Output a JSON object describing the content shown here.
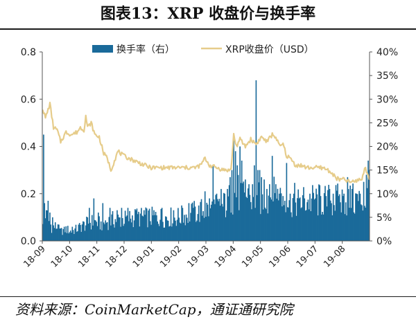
{
  "header": {
    "title": "图表13：XRP 收盘价与换手率"
  },
  "footer": {
    "source": "资料来源：CoinMarketCap，通证通研究院"
  },
  "colors": {
    "bar": "#1a6a9a",
    "line": "#e6cc8a",
    "axis": "#555555",
    "text": "#222222",
    "rule": "#1a1a1a"
  },
  "chart_data": {
    "type": "bar+line",
    "title": "图表13：XRP 收盘价与换手率",
    "legend": [
      "换手率（右）",
      "XRP收盘价（USD）"
    ],
    "legend_position": "top-center",
    "grid": false,
    "x_tick_labels": [
      "18-09",
      "18-10",
      "18-11",
      "18-12",
      "19-01",
      "19-02",
      "19-03",
      "19-04",
      "19-05",
      "19-06",
      "19-07",
      "19-08"
    ],
    "y_left": {
      "label": "XRP收盘价（USD）",
      "ticks": [
        "0.0",
        "0.2",
        "0.4",
        "0.6",
        "0.8"
      ],
      "range": [
        0,
        0.8
      ]
    },
    "y_right": {
      "label": "换手率",
      "ticks": [
        "0%",
        "5%",
        "10%",
        "15%",
        "20%",
        "25%",
        "30%",
        "35%",
        "40%"
      ],
      "range": [
        0,
        40
      ]
    },
    "n_days": 365,
    "series": [
      {
        "name": "XRP收盘价（USD）",
        "axis": "left",
        "kind": "line",
        "points": [
          [
            0,
            0.56
          ],
          [
            3,
            0.52
          ],
          [
            8,
            0.58
          ],
          [
            12,
            0.48
          ],
          [
            16,
            0.47
          ],
          [
            20,
            0.42
          ],
          [
            26,
            0.46
          ],
          [
            32,
            0.45
          ],
          [
            38,
            0.46
          ],
          [
            42,
            0.48
          ],
          [
            46,
            0.47
          ],
          [
            48,
            0.53
          ],
          [
            50,
            0.48
          ],
          [
            54,
            0.5
          ],
          [
            58,
            0.45
          ],
          [
            63,
            0.44
          ],
          [
            68,
            0.37
          ],
          [
            72,
            0.35
          ],
          [
            76,
            0.3
          ],
          [
            80,
            0.34
          ],
          [
            84,
            0.38
          ],
          [
            90,
            0.36
          ],
          [
            96,
            0.35
          ],
          [
            102,
            0.34
          ],
          [
            108,
            0.33
          ],
          [
            114,
            0.32
          ],
          [
            120,
            0.31
          ],
          [
            130,
            0.31
          ],
          [
            140,
            0.31
          ],
          [
            150,
            0.31
          ],
          [
            160,
            0.31
          ],
          [
            170,
            0.31
          ],
          [
            176,
            0.32
          ],
          [
            181,
            0.35
          ],
          [
            186,
            0.32
          ],
          [
            194,
            0.31
          ],
          [
            202,
            0.3
          ],
          [
            210,
            0.3
          ],
          [
            213,
            0.45
          ],
          [
            216,
            0.4
          ],
          [
            220,
            0.43
          ],
          [
            226,
            0.4
          ],
          [
            232,
            0.43
          ],
          [
            238,
            0.41
          ],
          [
            244,
            0.44
          ],
          [
            250,
            0.42
          ],
          [
            256,
            0.45
          ],
          [
            260,
            0.44
          ],
          [
            264,
            0.4
          ],
          [
            268,
            0.41
          ],
          [
            272,
            0.36
          ],
          [
            276,
            0.35
          ],
          [
            282,
            0.32
          ],
          [
            288,
            0.32
          ],
          [
            294,
            0.31
          ],
          [
            300,
            0.31
          ],
          [
            306,
            0.31
          ],
          [
            312,
            0.31
          ],
          [
            318,
            0.3
          ],
          [
            322,
            0.29
          ],
          [
            326,
            0.27
          ],
          [
            330,
            0.26
          ],
          [
            336,
            0.26
          ],
          [
            342,
            0.25
          ],
          [
            348,
            0.25
          ],
          [
            352,
            0.26
          ],
          [
            356,
            0.26
          ],
          [
            359,
            0.31
          ],
          [
            364,
            0.27
          ]
        ]
      },
      {
        "name": "换手率（右）",
        "axis": "right",
        "kind": "bar",
        "base_points": [
          [
            0,
            5
          ],
          [
            5,
            5
          ],
          [
            10,
            3
          ],
          [
            15,
            3
          ],
          [
            20,
            2
          ],
          [
            26,
            2.5
          ],
          [
            32,
            2
          ],
          [
            38,
            2.5
          ],
          [
            42,
            3
          ],
          [
            48,
            3.5
          ],
          [
            55,
            4
          ],
          [
            60,
            4
          ],
          [
            65,
            3.5
          ],
          [
            70,
            4
          ],
          [
            80,
            4.5
          ],
          [
            90,
            4.5
          ],
          [
            100,
            5
          ],
          [
            110,
            5
          ],
          [
            120,
            5
          ],
          [
            130,
            5
          ],
          [
            140,
            5
          ],
          [
            150,
            5
          ],
          [
            160,
            5.5
          ],
          [
            170,
            6
          ],
          [
            180,
            6.5
          ],
          [
            190,
            7
          ],
          [
            200,
            7
          ],
          [
            205,
            8
          ],
          [
            210,
            9
          ],
          [
            215,
            10
          ],
          [
            220,
            10
          ],
          [
            230,
            9
          ],
          [
            240,
            9
          ],
          [
            250,
            9.5
          ],
          [
            260,
            9.5
          ],
          [
            270,
            9
          ],
          [
            280,
            8.5
          ],
          [
            290,
            8.5
          ],
          [
            300,
            8.5
          ],
          [
            310,
            8.5
          ],
          [
            320,
            8.5
          ],
          [
            330,
            8.5
          ],
          [
            340,
            8.5
          ],
          [
            350,
            8.5
          ],
          [
            364,
            9
          ]
        ],
        "spikes": [
          [
            1,
            22.5
          ],
          [
            2,
            8
          ],
          [
            4,
            6.5
          ],
          [
            6,
            8.5
          ],
          [
            8,
            6
          ],
          [
            11,
            5
          ],
          [
            17,
            3.5
          ],
          [
            24,
            3
          ],
          [
            33,
            3
          ],
          [
            44,
            3.5
          ],
          [
            52,
            7
          ],
          [
            57,
            9
          ],
          [
            62,
            6
          ],
          [
            67,
            8
          ],
          [
            75,
            7
          ],
          [
            83,
            6.5
          ],
          [
            88,
            7
          ],
          [
            95,
            7
          ],
          [
            104,
            6.5
          ],
          [
            113,
            6.5
          ],
          [
            124,
            6.5
          ],
          [
            133,
            7
          ],
          [
            146,
            6.5
          ],
          [
            156,
            7
          ],
          [
            163,
            8
          ],
          [
            168,
            7
          ],
          [
            174,
            7.5
          ],
          [
            181,
            10.5
          ],
          [
            186,
            9
          ],
          [
            190,
            16
          ],
          [
            194,
            10
          ],
          [
            199,
            11
          ],
          [
            203,
            10
          ],
          [
            206,
            11
          ],
          [
            209,
            13.5
          ],
          [
            211,
            15
          ],
          [
            213,
            22.5
          ],
          [
            215,
            19
          ],
          [
            217,
            16
          ],
          [
            220,
            20
          ],
          [
            222,
            17
          ],
          [
            226,
            13
          ],
          [
            230,
            12
          ],
          [
            234,
            12
          ],
          [
            236,
            16
          ],
          [
            238,
            12
          ],
          [
            240,
            15
          ],
          [
            242,
            15
          ],
          [
            244,
            13.5
          ],
          [
            247,
            13
          ],
          [
            250,
            11
          ],
          [
            253,
            12
          ],
          [
            256,
            18
          ],
          [
            260,
            12
          ],
          [
            264,
            10
          ],
          [
            268,
            9.5
          ],
          [
            272,
            16.5
          ],
          [
            276,
            10
          ],
          [
            280,
            10
          ],
          [
            286,
            9
          ],
          [
            292,
            9
          ],
          [
            298,
            10
          ],
          [
            304,
            9
          ],
          [
            310,
            9.5
          ],
          [
            316,
            9.5
          ],
          [
            320,
            11
          ],
          [
            324,
            10
          ],
          [
            330,
            9.5
          ],
          [
            336,
            10
          ],
          [
            340,
            13.5
          ],
          [
            345,
            11
          ],
          [
            350,
            10
          ],
          [
            354,
            10
          ],
          [
            358,
            12.5
          ],
          [
            361,
            14
          ],
          [
            363,
            17
          ],
          [
            364,
            15
          ]
        ],
        "peak": [
          238,
          34
        ]
      }
    ]
  }
}
